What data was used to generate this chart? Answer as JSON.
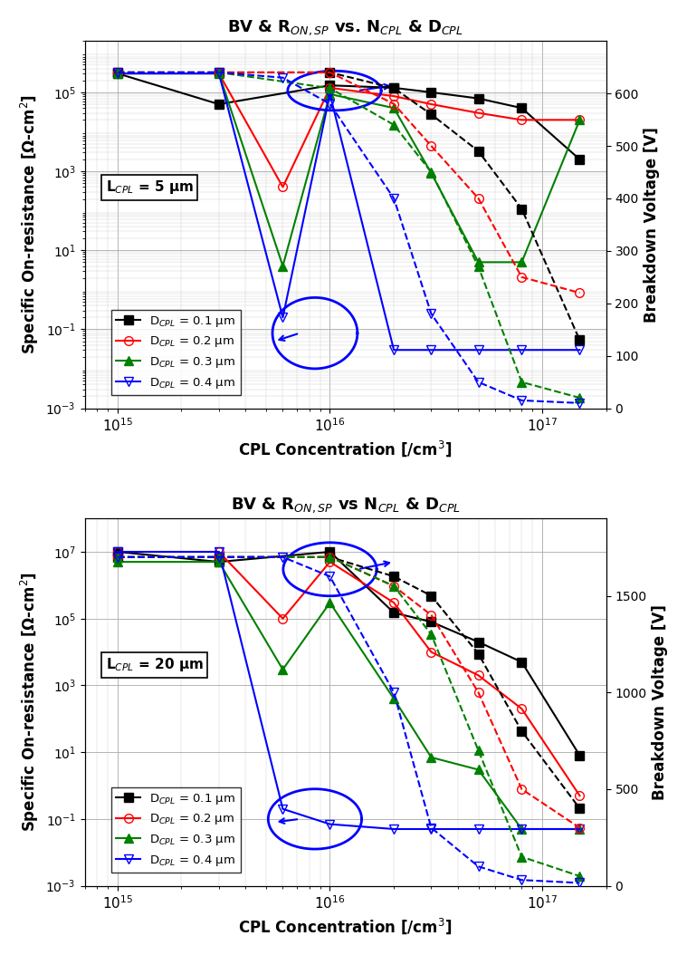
{
  "colors": [
    "black",
    "red",
    "green",
    "blue"
  ],
  "legend_labels": [
    "D$_{CPL}$ = 0.1 μm",
    "D$_{CPL}$ = 0.2 μm",
    "D$_{CPL}$ = 0.3 μm",
    "D$_{CPL}$ = 0.4 μm"
  ],
  "top": {
    "title": "BV & R$_{ON,SP}$ vs. N$_{CPL}$ & D$_{CPL}$",
    "label": "L$_{CPL}$ = 5 μm",
    "ylim_right": [
      0,
      700
    ],
    "yticks_right": [
      0,
      100,
      200,
      300,
      400,
      500,
      600
    ],
    "ylim_left": [
      0.001,
      2000000.0
    ],
    "ron": {
      "d01": {
        "x": [
          1000000000000000.0,
          3000000000000000.0,
          1e+16,
          2e+16,
          3e+16,
          5e+16,
          8e+16,
          1.5e+17
        ],
        "y": [
          300000.0,
          50000.0,
          150000.0,
          130000.0,
          100000.0,
          70000.0,
          40000.0,
          2000.0
        ]
      },
      "d02": {
        "x": [
          1000000000000000.0,
          3000000000000000.0,
          6000000000000000.0,
          1e+16,
          2e+16,
          3e+16,
          5e+16,
          8e+16,
          1.5e+17
        ],
        "y": [
          300000.0,
          300000.0,
          400.0,
          130000.0,
          80000.0,
          50000.0,
          30000.0,
          20000.0,
          20000.0
        ]
      },
      "d03": {
        "x": [
          1000000000000000.0,
          3000000000000000.0,
          6000000000000000.0,
          1e+16,
          2e+16,
          3e+16,
          5e+16,
          8e+16,
          1.5e+17
        ],
        "y": [
          300000.0,
          300000.0,
          4,
          90000.0,
          40000.0,
          900.0,
          5,
          5,
          20000.0
        ]
      },
      "d04": {
        "x": [
          1000000000000000.0,
          3000000000000000.0,
          6000000000000000.0,
          1e+16,
          2e+16,
          3e+16,
          5e+16,
          8e+16,
          1.5e+17
        ],
        "y": [
          300000.0,
          300000.0,
          0.2,
          90000.0,
          0.03,
          0.03,
          0.03,
          0.03,
          0.03
        ]
      }
    },
    "bv": {
      "d01": {
        "x": [
          1000000000000000.0,
          3000000000000000.0,
          1e+16,
          2e+16,
          3e+16,
          5e+16,
          8e+16,
          1.5e+17
        ],
        "y": [
          640,
          640,
          640,
          610,
          560,
          490,
          380,
          130
        ]
      },
      "d02": {
        "x": [
          1000000000000000.0,
          3000000000000000.0,
          1e+16,
          2e+16,
          3e+16,
          5e+16,
          8e+16,
          1.5e+17
        ],
        "y": [
          640,
          640,
          640,
          580,
          500,
          400,
          250,
          220
        ]
      },
      "d03": {
        "x": [
          1000000000000000.0,
          3000000000000000.0,
          1e+16,
          2e+16,
          3e+16,
          5e+16,
          8e+16,
          1.5e+17
        ],
        "y": [
          640,
          640,
          610,
          540,
          450,
          270,
          50,
          20
        ]
      },
      "d04": {
        "x": [
          1000000000000000.0,
          3000000000000000.0,
          6000000000000000.0,
          1e+16,
          2e+16,
          3e+16,
          5e+16,
          8e+16,
          1.5e+17
        ],
        "y": [
          640,
          640,
          630,
          580,
          400,
          180,
          50,
          15,
          10
        ]
      }
    }
  },
  "bottom": {
    "title": "BV & R$_{ON,SP}$ vs N$_{CPL}$ & D$_{CPL}$",
    "label": "L$_{CPL}$ = 20 μm",
    "ylim_right": [
      0,
      1900
    ],
    "yticks_right": [
      0,
      500,
      1000,
      1500
    ],
    "ylim_left": [
      0.001,
      100000000.0
    ],
    "ron": {
      "d01": {
        "x": [
          1000000000000000.0,
          3000000000000000.0,
          1e+16,
          2e+16,
          3e+16,
          5e+16,
          8e+16,
          1.5e+17
        ],
        "y": [
          10000000.0,
          5000000.0,
          10000000.0,
          150000.0,
          80000.0,
          20000.0,
          5000.0,
          8
        ]
      },
      "d02": {
        "x": [
          1000000000000000.0,
          3000000000000000.0,
          6000000000000000.0,
          1e+16,
          2e+16,
          3e+16,
          5e+16,
          8e+16,
          1.5e+17
        ],
        "y": [
          10000000.0,
          10000000.0,
          100000.0,
          5000000.0,
          300000.0,
          10000.0,
          2000.0,
          200.0,
          0.5
        ]
      },
      "d03": {
        "x": [
          1000000000000000.0,
          3000000000000000.0,
          6000000000000000.0,
          1e+16,
          2e+16,
          3e+16,
          5e+16,
          8e+16,
          1.5e+17
        ],
        "y": [
          5000000.0,
          5000000.0,
          3000.0,
          300000.0,
          400.0,
          7,
          3,
          0.05,
          0.05
        ]
      },
      "d04": {
        "x": [
          1000000000000000.0,
          3000000000000000.0,
          6000000000000000.0,
          1e+16,
          2e+16,
          3e+16,
          5e+16,
          8e+16,
          1.5e+17
        ],
        "y": [
          10000000.0,
          10000000.0,
          0.2,
          0.07,
          0.05,
          0.05,
          0.05,
          0.05,
          0.05
        ]
      }
    },
    "bv": {
      "d01": {
        "x": [
          1000000000000000.0,
          3000000000000000.0,
          1e+16,
          2e+16,
          3e+16,
          5e+16,
          8e+16,
          1.5e+17
        ],
        "y": [
          1700,
          1700,
          1700,
          1600,
          1500,
          1200,
          800,
          400
        ]
      },
      "d02": {
        "x": [
          1000000000000000.0,
          3000000000000000.0,
          1e+16,
          2e+16,
          3e+16,
          5e+16,
          8e+16,
          1.5e+17
        ],
        "y": [
          1700,
          1700,
          1700,
          1550,
          1400,
          1000,
          500,
          300
        ]
      },
      "d03": {
        "x": [
          1000000000000000.0,
          3000000000000000.0,
          1e+16,
          2e+16,
          3e+16,
          5e+16,
          8e+16,
          1.5e+17
        ],
        "y": [
          1700,
          1700,
          1700,
          1550,
          1300,
          700,
          150,
          50
        ]
      },
      "d04": {
        "x": [
          1000000000000000.0,
          3000000000000000.0,
          6000000000000000.0,
          1e+16,
          2e+16,
          3e+16,
          5e+16,
          8e+16,
          1.5e+17
        ],
        "y": [
          1700,
          1700,
          1700,
          1600,
          1000,
          300,
          100,
          30,
          15
        ]
      }
    }
  }
}
